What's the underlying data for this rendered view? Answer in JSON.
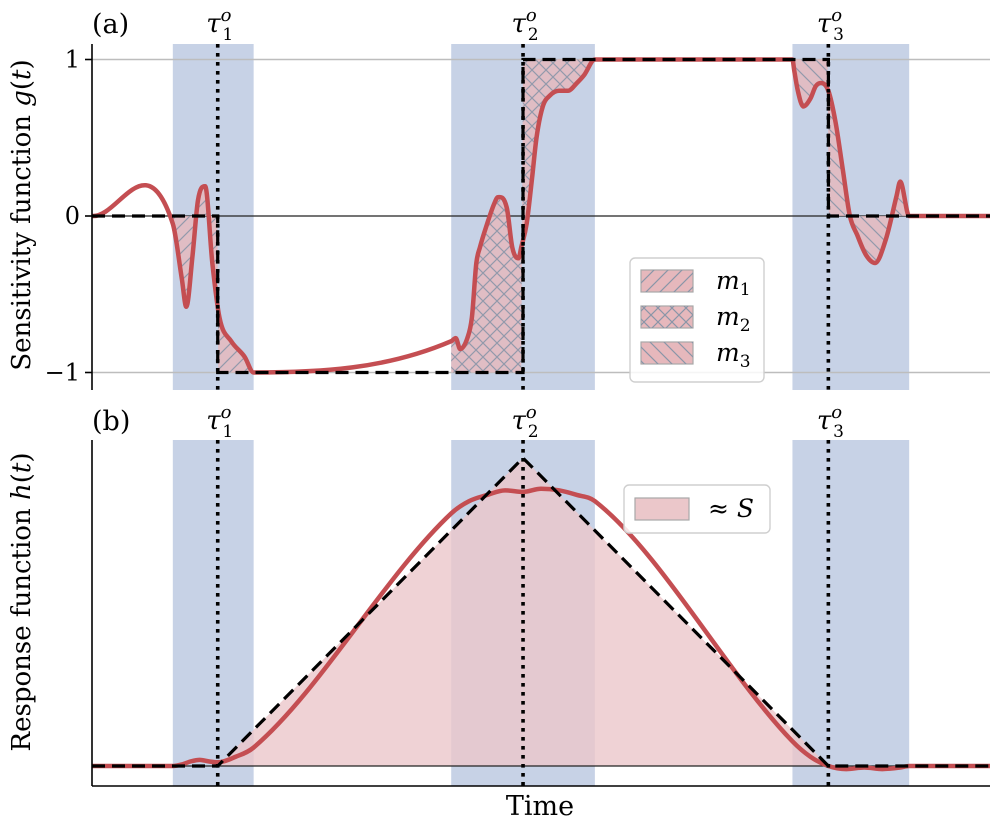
{
  "chart_data": [
    {
      "panel_label": "(a)",
      "type": "line",
      "ylabel": "Sensitivity function g(t)",
      "ylabel_parts": [
        "Sensitivity function ",
        "g",
        "(",
        "t",
        ")"
      ],
      "yticks": [
        {
          "value": 1,
          "label": "1"
        },
        {
          "value": 0,
          "label": "0"
        },
        {
          "value": -1,
          "label": "−1"
        }
      ],
      "ylim": [
        -1.1,
        1.1
      ],
      "xlim": [
        0,
        1
      ],
      "grid": "horizontal at ticks",
      "pulse_times": [
        {
          "t": 0.14,
          "label": "τ",
          "sub": "1",
          "sup": "o"
        },
        {
          "t": 0.48,
          "label": "τ",
          "sub": "2",
          "sup": "o"
        },
        {
          "t": 0.82,
          "label": "τ",
          "sub": "3",
          "sup": "o"
        }
      ],
      "pulse_windows": [
        [
          0.09,
          0.18
        ],
        [
          0.4,
          0.56
        ],
        [
          0.78,
          0.91
        ]
      ],
      "ideal": {
        "x": [
          0,
          0.14,
          0.14,
          0.48,
          0.48,
          0.82,
          0.82,
          1.0
        ],
        "y": [
          0,
          0,
          -1,
          -1,
          1,
          1,
          0,
          0
        ]
      },
      "actual": {
        "x": [
          0,
          0.09,
          0.1,
          0.105,
          0.112,
          0.118,
          0.126,
          0.134,
          0.142,
          0.155,
          0.17,
          0.18,
          0.4,
          0.405,
          0.41,
          0.418,
          0.423,
          0.428,
          0.432,
          0.44,
          0.448,
          0.452,
          0.462,
          0.468,
          0.475,
          0.478,
          0.484,
          0.49,
          0.495,
          0.502,
          0.51,
          0.52,
          0.53,
          0.54,
          0.548,
          0.56,
          0.78,
          0.782,
          0.786,
          0.792,
          0.8,
          0.806,
          0.812,
          0.82,
          0.828,
          0.836,
          0.844,
          0.852,
          0.862,
          0.872,
          0.884,
          0.896,
          0.9,
          0.91,
          1.0
        ],
        "y": [
          0,
          -0.05,
          -0.4,
          -0.58,
          -0.25,
          0.1,
          0.19,
          -0.3,
          -0.65,
          -0.8,
          -0.9,
          -1.0,
          -0.8,
          -0.78,
          -0.85,
          -0.78,
          -0.65,
          -0.3,
          -0.2,
          -0.05,
          0.08,
          0.12,
          0.05,
          -0.2,
          -0.27,
          -0.2,
          -0.05,
          0.24,
          0.5,
          0.7,
          0.77,
          0.8,
          0.8,
          0.85,
          0.9,
          1.0,
          1.0,
          0.93,
          0.8,
          0.7,
          0.75,
          0.83,
          0.85,
          0.8,
          0.6,
          0.3,
          0.0,
          -0.12,
          -0.25,
          -0.3,
          -0.15,
          0.13,
          0.22,
          0.0,
          0.0
        ]
      },
      "legend": {
        "placement": "center-right",
        "entries": [
          {
            "label": "m",
            "sub": "1",
            "hatch": "diagonal"
          },
          {
            "label": "m",
            "sub": "2",
            "hatch": "cross"
          },
          {
            "label": "m",
            "sub": "3",
            "hatch": "anti-diagonal"
          }
        ]
      },
      "colors": {
        "actual": "#c44e52",
        "ideal": "#000000",
        "window": "#c7d2e6",
        "fill": "#e6b8bc",
        "hatch": "#8a96a8"
      }
    },
    {
      "panel_label": "(b)",
      "type": "line",
      "ylabel": "Response function h(t)",
      "ylabel_parts": [
        "Response function ",
        "h",
        "(",
        "t",
        ")"
      ],
      "xlabel": "Time",
      "xlim": [
        0,
        1
      ],
      "ylim": [
        -0.06,
        1.03
      ],
      "pulse_times": [
        {
          "t": 0.14,
          "label": "τ",
          "sub": "1",
          "sup": "o"
        },
        {
          "t": 0.48,
          "label": "τ",
          "sub": "2",
          "sup": "o"
        },
        {
          "t": 0.82,
          "label": "τ",
          "sub": "3",
          "sup": "o"
        }
      ],
      "pulse_windows": [
        [
          0.09,
          0.18
        ],
        [
          0.4,
          0.56
        ],
        [
          0.78,
          0.91
        ]
      ],
      "ideal": {
        "x": [
          0,
          0.14,
          0.48,
          0.82,
          1.0
        ],
        "y": [
          0,
          0,
          1,
          0,
          0
        ]
      },
      "actual": {
        "x": [
          0,
          0.09,
          0.1,
          0.11,
          0.12,
          0.13,
          0.14,
          0.16,
          0.18,
          0.4,
          0.42,
          0.44,
          0.46,
          0.48,
          0.5,
          0.52,
          0.54,
          0.56,
          0.78,
          0.8,
          0.82,
          0.84,
          0.86,
          0.88,
          0.9,
          0.91,
          1.0
        ],
        "y": [
          0,
          0,
          0.005,
          0.015,
          0.02,
          0.015,
          0.012,
          0.03,
          0.06,
          0.82,
          0.86,
          0.88,
          0.895,
          0.89,
          0.9,
          0.895,
          0.88,
          0.86,
          0.08,
          0.03,
          0.0,
          -0.01,
          -0.005,
          -0.01,
          -0.005,
          0.0,
          0.0
        ]
      },
      "legend": {
        "placement": "top-right",
        "entries": [
          {
            "label": "≈ ",
            "var": "S"
          }
        ]
      },
      "colors": {
        "actual": "#c44e52",
        "ideal": "#000000",
        "window": "#c7d2e6",
        "fill": "#ebc7ca"
      }
    }
  ]
}
